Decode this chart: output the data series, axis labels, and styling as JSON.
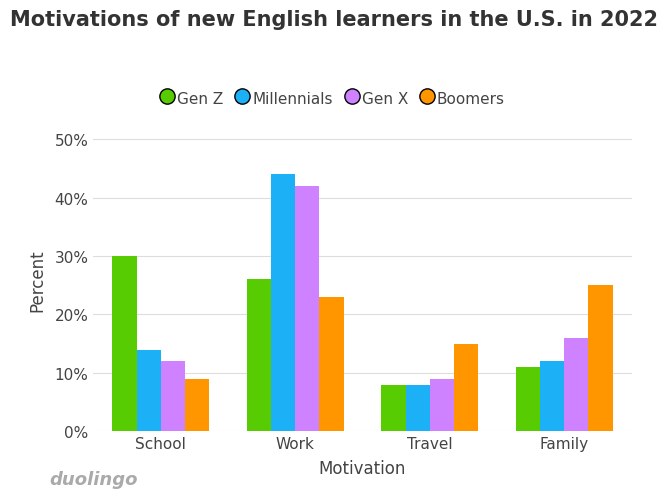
{
  "title": "Motivations of new English learners in the U.S. in 2022",
  "xlabel": "Motivation",
  "ylabel": "Percent",
  "categories": [
    "School",
    "Work",
    "Travel",
    "Family"
  ],
  "generations": [
    "Gen Z",
    "Millennials",
    "Gen X",
    "Boomers"
  ],
  "colors": [
    "#58CC02",
    "#1CB0F6",
    "#CE82FF",
    "#FF9600"
  ],
  "values": {
    "Gen Z": [
      30,
      26,
      8,
      11
    ],
    "Millennials": [
      14,
      44,
      8,
      12
    ],
    "Gen X": [
      12,
      42,
      9,
      16
    ],
    "Boomers": [
      9,
      23,
      15,
      25
    ]
  },
  "ylim": [
    0,
    52
  ],
  "yticks": [
    0,
    10,
    20,
    30,
    40,
    50
  ],
  "ytick_labels": [
    "0%",
    "10%",
    "20%",
    "30%",
    "40%",
    "50%"
  ],
  "background_color": "#ffffff",
  "grid_color": "#dddddd",
  "title_fontsize": 15,
  "axis_label_fontsize": 12,
  "tick_fontsize": 11,
  "legend_fontsize": 11,
  "bar_width": 0.18,
  "watermark": "duolingo",
  "watermark_color": "#aaaaaa",
  "watermark_fontsize": 13
}
